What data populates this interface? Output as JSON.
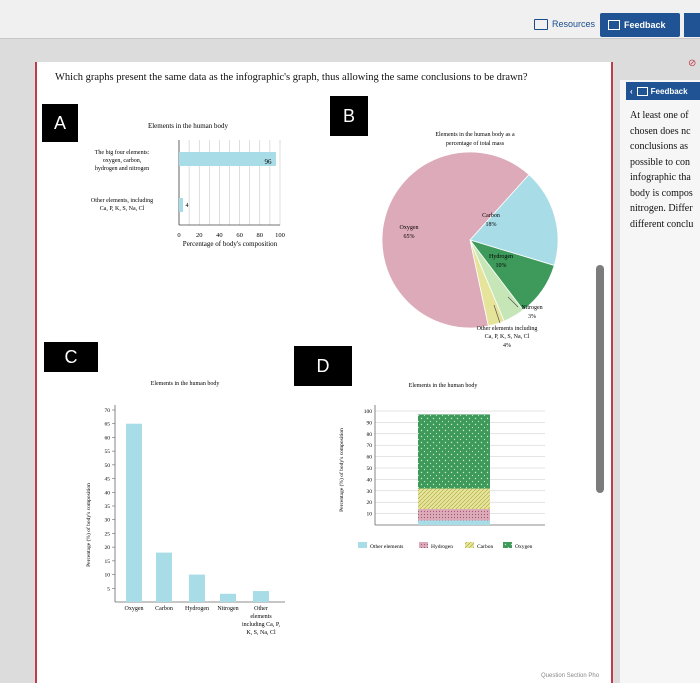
{
  "header": {
    "resources_label": "Resources",
    "feedback_label": "Feedback"
  },
  "question": "Which graphs present the same data as the infographic's graph, thus allowing the same conclusions to be drawn?",
  "options": [
    {
      "letter": "A",
      "chart_title": "Elements in the human body"
    },
    {
      "letter": "B",
      "chart_title": "Elements in the human body as a percentage of total mass"
    },
    {
      "letter": "C",
      "chart_title": "Elements in the human body"
    },
    {
      "letter": "D",
      "chart_title": "Elements in the human body"
    }
  ],
  "side_panel": {
    "feedback_label": "Feedback",
    "back_icon": "chevron-left-icon",
    "lines": [
      "At least one of",
      "chosen does nc",
      "conclusions as",
      "possible to con",
      "infographic tha",
      "body is compos",
      "nitrogen. Differ",
      "different conclu"
    ]
  },
  "footer_text": "Question Section Pho",
  "colors": {
    "brand_blue": "#1f5393",
    "accent_red": "#c23b4d",
    "bar_blue": "#a8dde8",
    "oxygen_pink": "#dcaab8",
    "carbon_blue": "#a8dde8",
    "hydrogen_green": "#3d9a5a",
    "nitrogen_yellow": "#e6e49a",
    "other_green": "#c6e6b8"
  },
  "chart_data": [
    {
      "type": "bar",
      "orientation": "horizontal",
      "title": "Elements in the human body",
      "categories": [
        "The big four elements: oxygen, carbon, hydrogen and nitrogen",
        "Other elements, including Ca, P, K, S, Na, Cl"
      ],
      "values": [
        96,
        4
      ],
      "xlabel": "Percentage of body's composition",
      "xticks": [
        "0",
        "20",
        "40",
        "60",
        "80",
        "100"
      ],
      "xlim": [
        0,
        100
      ],
      "grid": true
    },
    {
      "type": "pie",
      "title": "Elements in the human body as a percentage of total mass",
      "slices": [
        {
          "label": "Oxygen",
          "value_label": "65%",
          "value": 65
        },
        {
          "label": "Carbon",
          "value_label": "18%",
          "value": 18
        },
        {
          "label": "Hydrogen",
          "value_label": "10%",
          "value": 10
        },
        {
          "label": "Nitrogen",
          "value_label": "3%",
          "value": 3
        },
        {
          "label": "Other elements including Ca, P, K, S, Na, Cl",
          "value_label": "4%",
          "value": 4
        }
      ]
    },
    {
      "type": "bar",
      "title": "Elements in the human body",
      "categories": [
        "Oxygen",
        "Carbon",
        "Hydrogen",
        "Nitrogen",
        "Other elements including Ca, P, K, S, Na, Cl"
      ],
      "values": [
        65,
        18,
        10,
        3,
        4
      ],
      "ylabel": "Percentage (%) of body's composition",
      "ylim": [
        0,
        70
      ],
      "yticks": [
        "5",
        "10",
        "15",
        "20",
        "25",
        "30",
        "35",
        "40",
        "45",
        "50",
        "55",
        "60",
        "65",
        "70"
      ]
    },
    {
      "type": "bar",
      "stacked": true,
      "title": "Elements in the human body",
      "ylabel": "Percentage (%) of body's composition",
      "ylim": [
        0,
        100
      ],
      "yticks": [
        "10",
        "20",
        "30",
        "40",
        "50",
        "60",
        "70",
        "80",
        "90",
        "100"
      ],
      "series": [
        {
          "name": "Other elements",
          "value": 4
        },
        {
          "name": "Hydrogen",
          "value": 10
        },
        {
          "name": "Carbon",
          "value": 18
        },
        {
          "name": "Oxygen",
          "value": 65
        }
      ],
      "legend": "bottom"
    }
  ]
}
